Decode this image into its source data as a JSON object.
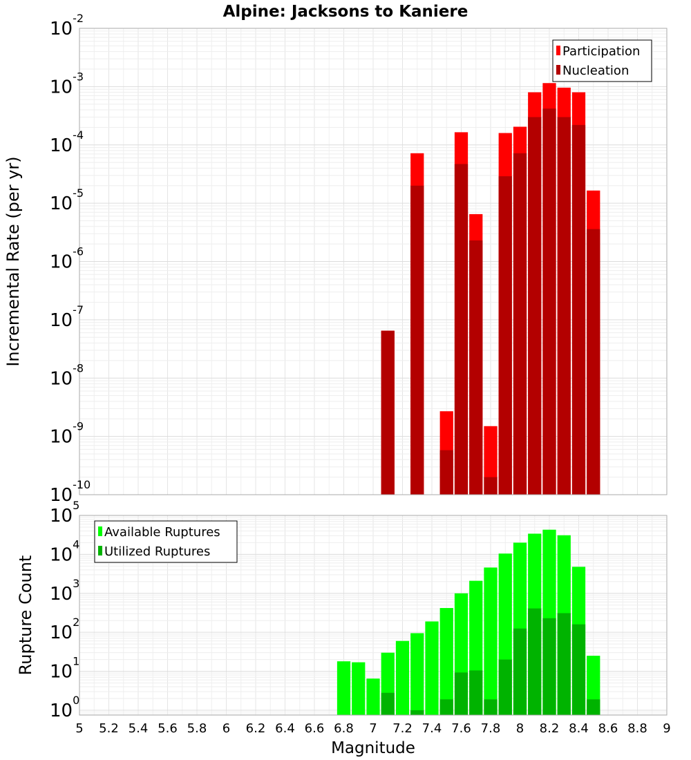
{
  "title": "Alpine: Jacksons to Kaniere",
  "chart_data": [
    {
      "type": "bar",
      "panel": "top",
      "ylabel": "Incremental Rate (per yr)",
      "y_scale": "log",
      "ylim": [
        1e-10,
        0.01
      ],
      "xlim": [
        5,
        9
      ],
      "grid": true,
      "legend_placement": "top-right",
      "bar_width": 0.1,
      "x": [
        7.1,
        7.3,
        7.5,
        7.6,
        7.7,
        7.8,
        7.9,
        8.0,
        8.1,
        8.2,
        8.3,
        8.4,
        8.5
      ],
      "series": [
        {
          "name": "Participation",
          "color": "#ff0000",
          "values": [
            6.5e-08,
            7.2e-05,
            2.7e-09,
            0.000165,
            6.5e-06,
            1.5e-09,
            0.00016,
            0.000205,
            0.0008,
            0.00115,
            0.00096,
            0.0008,
            1.65e-05
          ]
        },
        {
          "name": "Nucleation",
          "color": "#b30000",
          "values": [
            6.5e-08,
            2e-05,
            5.8e-10,
            4.7e-05,
            2.3e-06,
            2e-10,
            2.9e-05,
            7.2e-05,
            0.0003,
            0.00042,
            0.0003,
            0.00022,
            3.6e-06
          ]
        }
      ]
    },
    {
      "type": "bar",
      "panel": "bottom",
      "xlabel": "Magnitude",
      "ylabel": "Rupture Count",
      "y_scale": "log",
      "ylim": [
        0.75,
        100000.0
      ],
      "xlim": [
        5,
        9
      ],
      "grid": true,
      "legend_placement": "top-left",
      "bar_width": 0.1,
      "x": [
        6.8,
        6.9,
        7.0,
        7.1,
        7.2,
        7.3,
        7.4,
        7.5,
        7.6,
        7.7,
        7.8,
        7.9,
        8.0,
        8.1,
        8.2,
        8.3,
        8.4,
        8.5
      ],
      "series": [
        {
          "name": "Available Ruptures",
          "color": "#00ff00",
          "values": [
            18,
            17,
            6.5,
            30,
            60,
            95,
            190,
            420,
            1000,
            2100,
            4600,
            10500,
            20000,
            34000,
            43000,
            31000,
            4800,
            25
          ]
        },
        {
          "name": "Utilized Ruptures",
          "color": "#00b300",
          "values": [
            0,
            0,
            0,
            2.8,
            0,
            1,
            0,
            1.9,
            9.3,
            10.5,
            1.9,
            20,
            125,
            410,
            230,
            310,
            160,
            1.9
          ]
        }
      ]
    }
  ],
  "x_ticks": [
    "5",
    "5.2",
    "5.4",
    "5.6",
    "5.8",
    "6",
    "6.2",
    "6.4",
    "6.6",
    "6.8",
    "7",
    "7.2",
    "7.4",
    "7.6",
    "7.8",
    "8",
    "8.2",
    "8.4",
    "8.6",
    "8.8",
    "9"
  ],
  "top_y_ticks": [
    {
      "base": "10",
      "exp": "-2",
      "value": 0.01
    },
    {
      "base": "10",
      "exp": "-3",
      "value": 0.001
    },
    {
      "base": "10",
      "exp": "-4",
      "value": 0.0001
    },
    {
      "base": "10",
      "exp": "-5",
      "value": 1e-05
    },
    {
      "base": "10",
      "exp": "-6",
      "value": 1e-06
    },
    {
      "base": "10",
      "exp": "-7",
      "value": 1e-07
    },
    {
      "base": "10",
      "exp": "-8",
      "value": 1e-08
    },
    {
      "base": "10",
      "exp": "-9",
      "value": 1e-09
    },
    {
      "base": "10",
      "exp": "-10",
      "value": 1e-10
    }
  ],
  "bottom_y_ticks": [
    {
      "base": "10",
      "exp": "5",
      "value": 100000.0
    },
    {
      "base": "10",
      "exp": "4",
      "value": 10000.0
    },
    {
      "base": "10",
      "exp": "3",
      "value": 1000.0
    },
    {
      "base": "10",
      "exp": "2",
      "value": 100.0
    },
    {
      "base": "10",
      "exp": "1",
      "value": 10.0
    },
    {
      "base": "10",
      "exp": "0",
      "value": 1
    }
  ]
}
